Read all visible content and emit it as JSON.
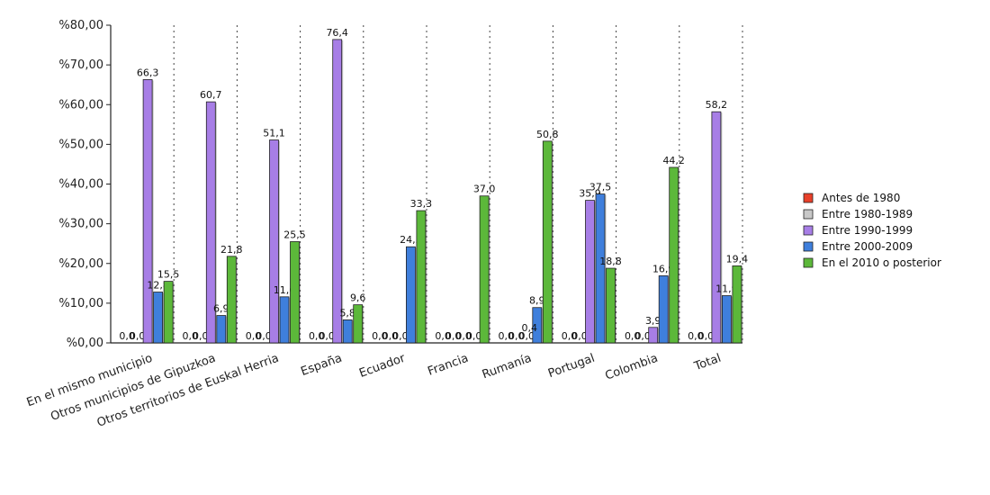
{
  "chart_data": {
    "type": "bar",
    "title": "",
    "xlabel": "",
    "ylabel": "",
    "ylim": [
      0,
      80
    ],
    "y_ticks": [
      "%0,00",
      "%10,00",
      "%20,00",
      "%30,00",
      "%40,00",
      "%50,00",
      "%60,00",
      "%70,00",
      "%80,00"
    ],
    "grid": "vertical dotted separators between categories",
    "legend_position": "right",
    "categories": [
      "En el mismo municipio",
      "Otros municipios de Gipuzkoa",
      "Otros territorios de Euskal Herria",
      "España",
      "Ecuador",
      "Francia",
      "Rumanía",
      "Portugal",
      "Colombia",
      "Total"
    ],
    "series": [
      {
        "name": "Antes de 1980",
        "color": "#e8402a",
        "values": [
          0,
          0,
          0,
          0,
          0,
          0,
          0,
          0,
          0,
          0
        ],
        "labels": [
          "0,0",
          "0,0",
          "0,0",
          "0,0",
          "0,0",
          "0,0",
          "0,0",
          "0,0",
          "0,0",
          "0,0"
        ]
      },
      {
        "name": "Entre 1980-1989",
        "color": "#c8c8c8",
        "values": [
          0,
          0,
          0,
          0,
          0,
          0,
          0,
          0,
          0,
          0
        ],
        "labels": [
          "0,0",
          "0,0",
          "0,0",
          "0,0",
          "0,0",
          "0,0",
          "0,0",
          "0,0",
          "0,0",
          "0,0"
        ]
      },
      {
        "name": "Entre 1990-1999",
        "color": "#a77ee6",
        "values": [
          66.3,
          60.7,
          51.1,
          76.4,
          0,
          0,
          0,
          35.9,
          3.9,
          58.2
        ],
        "labels": [
          "66,3",
          "60,7",
          "51,1",
          "76,4",
          "0,0",
          "0,0",
          "0,0",
          "35,9",
          "3,9",
          "58,2"
        ]
      },
      {
        "name": "Entre 2000-2009",
        "color": "#3f7fdc",
        "values": [
          12.8,
          6.9,
          11.6,
          5.8,
          24.2,
          0,
          8.9,
          37.5,
          16.9,
          11.9
        ],
        "labels": [
          "12,8",
          "6,9",
          "11,6",
          "5,8",
          "24,2",
          "0,0",
          "8,9",
          "37,5",
          "16,9",
          "11,9"
        ]
      },
      {
        "name": "En el 2010 o posterior",
        "color": "#5cb83a",
        "values": [
          15.5,
          21.8,
          25.5,
          9.6,
          33.3,
          37.0,
          50.8,
          18.8,
          44.2,
          19.4
        ],
        "labels": [
          "15,5",
          "21,8",
          "25,5",
          "9,6",
          "33,3",
          "37,0",
          "50,8",
          "18,8",
          "44,2",
          "19,4"
        ]
      }
    ],
    "extra_labels": [
      {
        "category_index": 6,
        "text": "0,4"
      }
    ]
  }
}
